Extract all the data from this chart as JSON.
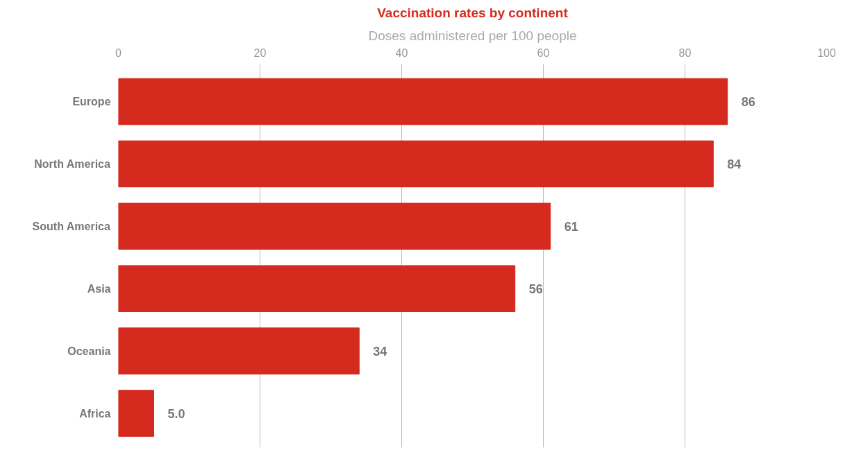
{
  "chart_data": {
    "type": "bar",
    "orientation": "horizontal",
    "title": "Vaccination rates by continent",
    "subtitle": "Doses administered per 100 people",
    "categories": [
      "Europe",
      "North America",
      "South America",
      "Asia",
      "Oceania",
      "Africa"
    ],
    "values": [
      86,
      84,
      61,
      56,
      34,
      5.0
    ],
    "value_labels": [
      "86",
      "84",
      "61",
      "56",
      "34",
      "5.0"
    ],
    "color": "#d52b1e",
    "xlim": [
      0,
      100
    ],
    "xticks": [
      0,
      20,
      40,
      60,
      80,
      100
    ],
    "grid": "x"
  }
}
